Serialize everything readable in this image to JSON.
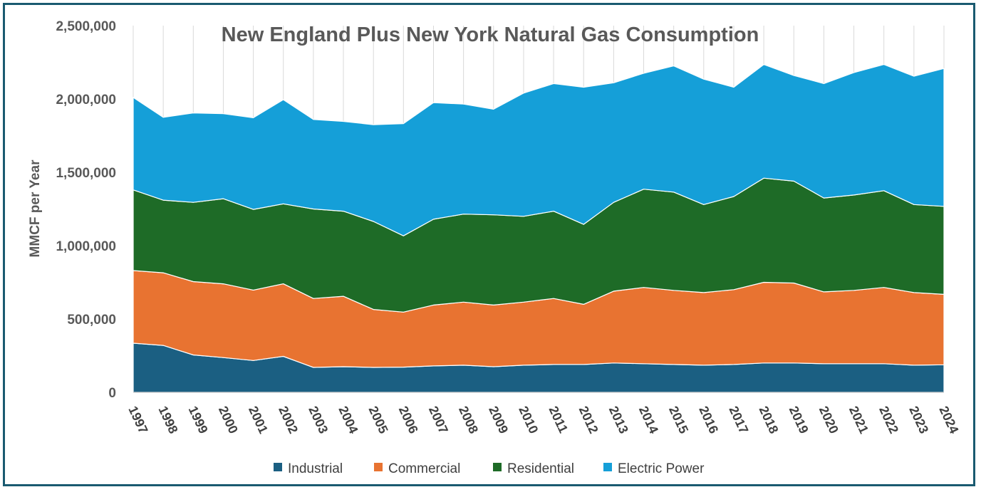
{
  "chart_data": {
    "type": "area",
    "stacked": true,
    "title": "New England Plus New York Natural Gas Consumption",
    "xlabel": "",
    "ylabel": "MMCF per Year",
    "ylim": [
      0,
      2500000
    ],
    "yticks": [
      0,
      500000,
      1000000,
      1500000,
      2000000,
      2500000
    ],
    "ytick_labels": [
      "0",
      "500,000",
      "1,000,000",
      "1,500,000",
      "2,000,000",
      "2,500,000"
    ],
    "grid": "vertical",
    "legend_position": "bottom",
    "x": [
      "1997",
      "1998",
      "1999",
      "2000",
      "2001",
      "2002",
      "2003",
      "2004",
      "2005",
      "2006",
      "2007",
      "2008",
      "2009",
      "2010",
      "2011",
      "2012",
      "2013",
      "2014",
      "2015",
      "2016",
      "2017",
      "2018",
      "2019",
      "2020",
      "2021",
      "2022",
      "2023",
      "2024"
    ],
    "series": [
      {
        "name": "Industrial",
        "color": "#1b5f82",
        "values": [
          335000,
          320000,
          255000,
          237000,
          217000,
          245000,
          170000,
          175000,
          170000,
          172000,
          180000,
          185000,
          175000,
          185000,
          190000,
          190000,
          200000,
          195000,
          190000,
          185000,
          190000,
          200000,
          200000,
          195000,
          195000,
          195000,
          185000,
          188000
        ]
      },
      {
        "name": "Commercial",
        "color": "#e87331",
        "values": [
          495000,
          495000,
          500000,
          503000,
          480000,
          495000,
          470000,
          480000,
          395000,
          375000,
          415000,
          430000,
          420000,
          430000,
          450000,
          410000,
          490000,
          520000,
          505000,
          495000,
          510000,
          550000,
          545000,
          490000,
          500000,
          520000,
          495000,
          480000
        ]
      },
      {
        "name": "Residential",
        "color": "#1e6b27",
        "values": [
          550000,
          495000,
          540000,
          580000,
          550000,
          545000,
          610000,
          580000,
          600000,
          520000,
          585000,
          600000,
          615000,
          585000,
          595000,
          545000,
          605000,
          670000,
          670000,
          600000,
          635000,
          710000,
          695000,
          640000,
          650000,
          660000,
          600000,
          600000
        ]
      },
      {
        "name": "Electric Power",
        "color": "#159fd8",
        "values": [
          630000,
          565000,
          610000,
          580000,
          625000,
          710000,
          610000,
          612000,
          660000,
          765000,
          795000,
          750000,
          720000,
          840000,
          870000,
          935000,
          815000,
          790000,
          860000,
          855000,
          745000,
          775000,
          720000,
          780000,
          835000,
          860000,
          875000,
          940000
        ]
      }
    ]
  }
}
